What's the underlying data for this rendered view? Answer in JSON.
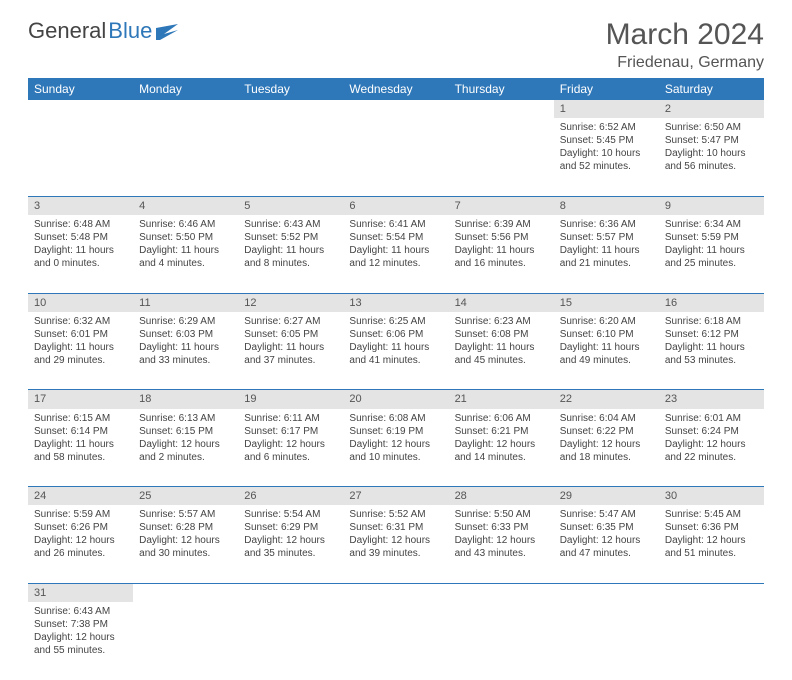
{
  "logo": {
    "text1": "General",
    "text2": "Blue"
  },
  "title": "March 2024",
  "location": "Friedenau, Germany",
  "colors": {
    "header_bg": "#2e77b8",
    "header_text": "#ffffff",
    "daynum_bg": "#e4e4e4",
    "border": "#2e77b8",
    "text": "#444444",
    "page_bg": "#ffffff"
  },
  "daysOfWeek": [
    "Sunday",
    "Monday",
    "Tuesday",
    "Wednesday",
    "Thursday",
    "Friday",
    "Saturday"
  ],
  "weeks": [
    [
      null,
      null,
      null,
      null,
      null,
      {
        "n": "1",
        "sr": "6:52 AM",
        "ss": "5:45 PM",
        "dl": "10 hours and 52 minutes."
      },
      {
        "n": "2",
        "sr": "6:50 AM",
        "ss": "5:47 PM",
        "dl": "10 hours and 56 minutes."
      }
    ],
    [
      {
        "n": "3",
        "sr": "6:48 AM",
        "ss": "5:48 PM",
        "dl": "11 hours and 0 minutes."
      },
      {
        "n": "4",
        "sr": "6:46 AM",
        "ss": "5:50 PM",
        "dl": "11 hours and 4 minutes."
      },
      {
        "n": "5",
        "sr": "6:43 AM",
        "ss": "5:52 PM",
        "dl": "11 hours and 8 minutes."
      },
      {
        "n": "6",
        "sr": "6:41 AM",
        "ss": "5:54 PM",
        "dl": "11 hours and 12 minutes."
      },
      {
        "n": "7",
        "sr": "6:39 AM",
        "ss": "5:56 PM",
        "dl": "11 hours and 16 minutes."
      },
      {
        "n": "8",
        "sr": "6:36 AM",
        "ss": "5:57 PM",
        "dl": "11 hours and 21 minutes."
      },
      {
        "n": "9",
        "sr": "6:34 AM",
        "ss": "5:59 PM",
        "dl": "11 hours and 25 minutes."
      }
    ],
    [
      {
        "n": "10",
        "sr": "6:32 AM",
        "ss": "6:01 PM",
        "dl": "11 hours and 29 minutes."
      },
      {
        "n": "11",
        "sr": "6:29 AM",
        "ss": "6:03 PM",
        "dl": "11 hours and 33 minutes."
      },
      {
        "n": "12",
        "sr": "6:27 AM",
        "ss": "6:05 PM",
        "dl": "11 hours and 37 minutes."
      },
      {
        "n": "13",
        "sr": "6:25 AM",
        "ss": "6:06 PM",
        "dl": "11 hours and 41 minutes."
      },
      {
        "n": "14",
        "sr": "6:23 AM",
        "ss": "6:08 PM",
        "dl": "11 hours and 45 minutes."
      },
      {
        "n": "15",
        "sr": "6:20 AM",
        "ss": "6:10 PM",
        "dl": "11 hours and 49 minutes."
      },
      {
        "n": "16",
        "sr": "6:18 AM",
        "ss": "6:12 PM",
        "dl": "11 hours and 53 minutes."
      }
    ],
    [
      {
        "n": "17",
        "sr": "6:15 AM",
        "ss": "6:14 PM",
        "dl": "11 hours and 58 minutes."
      },
      {
        "n": "18",
        "sr": "6:13 AM",
        "ss": "6:15 PM",
        "dl": "12 hours and 2 minutes."
      },
      {
        "n": "19",
        "sr": "6:11 AM",
        "ss": "6:17 PM",
        "dl": "12 hours and 6 minutes."
      },
      {
        "n": "20",
        "sr": "6:08 AM",
        "ss": "6:19 PM",
        "dl": "12 hours and 10 minutes."
      },
      {
        "n": "21",
        "sr": "6:06 AM",
        "ss": "6:21 PM",
        "dl": "12 hours and 14 minutes."
      },
      {
        "n": "22",
        "sr": "6:04 AM",
        "ss": "6:22 PM",
        "dl": "12 hours and 18 minutes."
      },
      {
        "n": "23",
        "sr": "6:01 AM",
        "ss": "6:24 PM",
        "dl": "12 hours and 22 minutes."
      }
    ],
    [
      {
        "n": "24",
        "sr": "5:59 AM",
        "ss": "6:26 PM",
        "dl": "12 hours and 26 minutes."
      },
      {
        "n": "25",
        "sr": "5:57 AM",
        "ss": "6:28 PM",
        "dl": "12 hours and 30 minutes."
      },
      {
        "n": "26",
        "sr": "5:54 AM",
        "ss": "6:29 PM",
        "dl": "12 hours and 35 minutes."
      },
      {
        "n": "27",
        "sr": "5:52 AM",
        "ss": "6:31 PM",
        "dl": "12 hours and 39 minutes."
      },
      {
        "n": "28",
        "sr": "5:50 AM",
        "ss": "6:33 PM",
        "dl": "12 hours and 43 minutes."
      },
      {
        "n": "29",
        "sr": "5:47 AM",
        "ss": "6:35 PM",
        "dl": "12 hours and 47 minutes."
      },
      {
        "n": "30",
        "sr": "5:45 AM",
        "ss": "6:36 PM",
        "dl": "12 hours and 51 minutes."
      }
    ],
    [
      {
        "n": "31",
        "sr": "6:43 AM",
        "ss": "7:38 PM",
        "dl": "12 hours and 55 minutes."
      },
      null,
      null,
      null,
      null,
      null,
      null
    ]
  ],
  "labels": {
    "sunrise": "Sunrise: ",
    "sunset": "Sunset: ",
    "daylight": "Daylight: "
  }
}
